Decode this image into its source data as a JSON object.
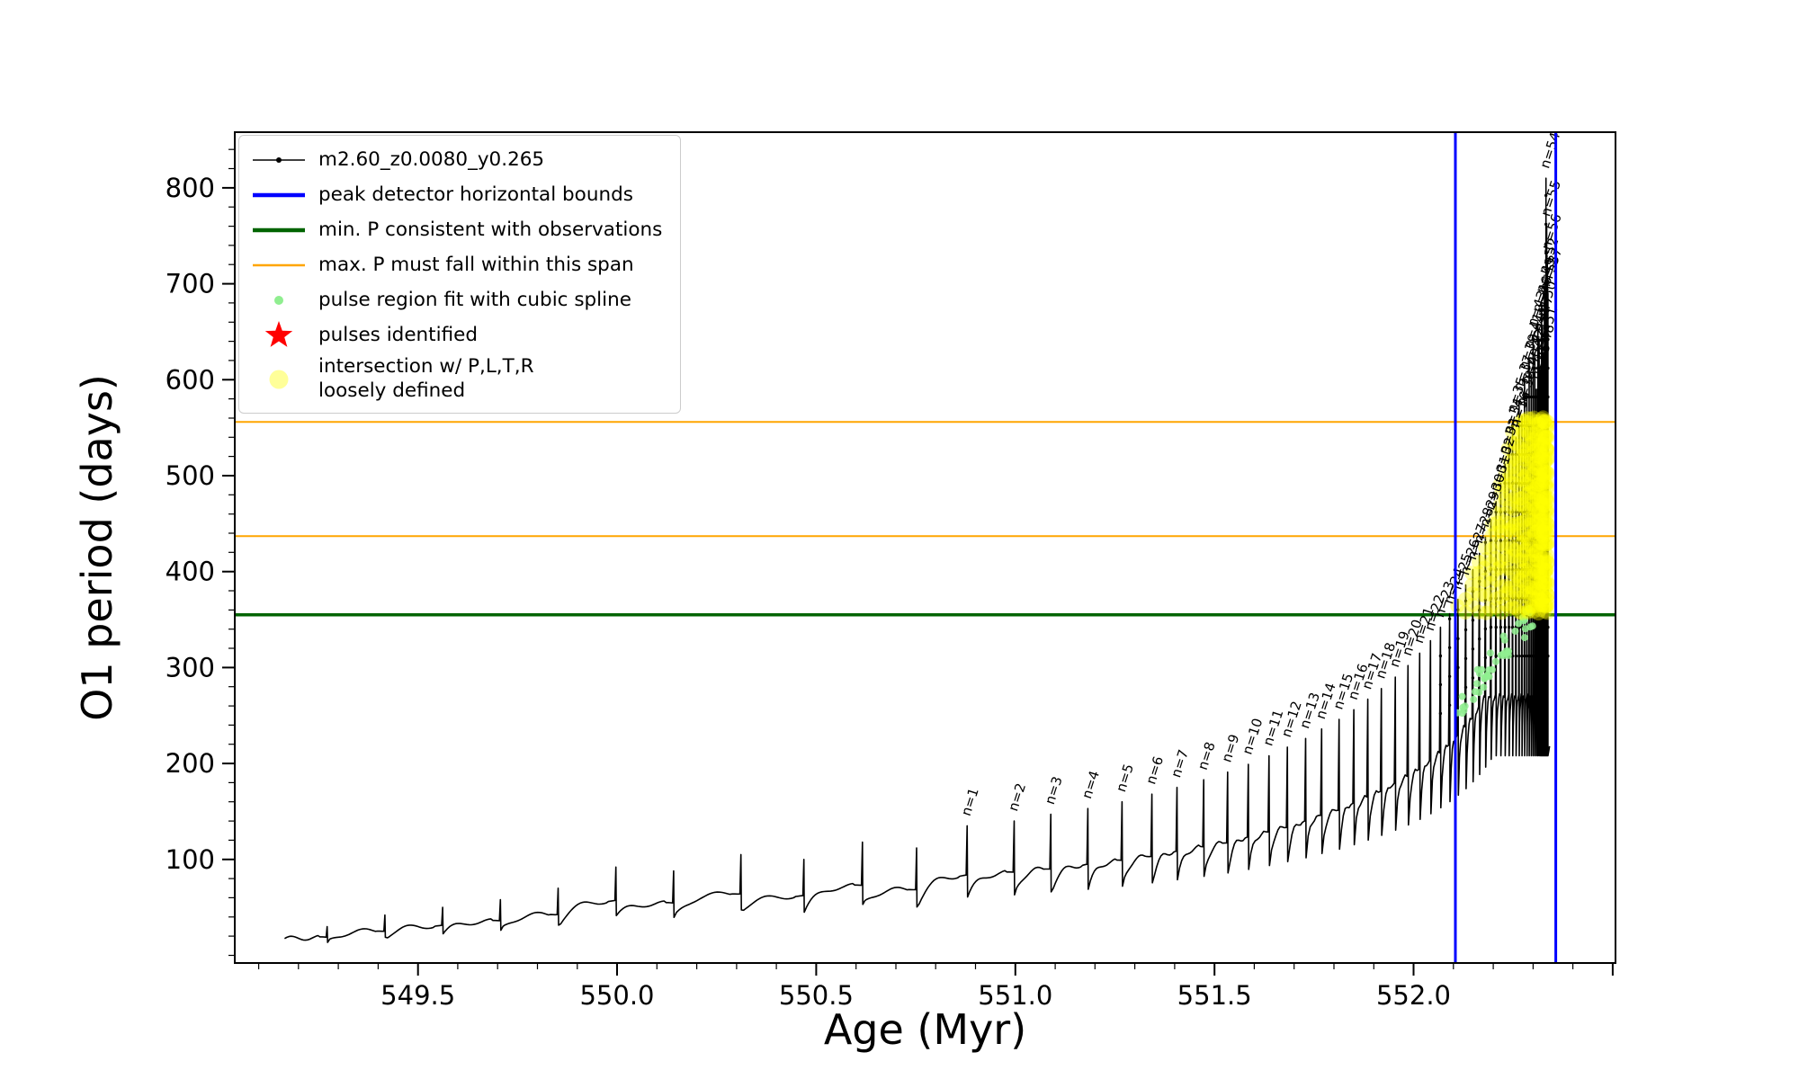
{
  "axes": {
    "xlabel": "Age (Myr)",
    "ylabel": "O1 period (days)",
    "xlim": [
      549.04,
      552.507
    ],
    "ylim": [
      -8,
      858
    ],
    "xticks": [
      549.5,
      550.0,
      550.5,
      551.0,
      551.5,
      552.0
    ],
    "xtick_labels": [
      "549.5",
      "550.0",
      "550.5",
      "551.0",
      "551.5",
      "552.0"
    ],
    "yticks": [
      100,
      200,
      300,
      400,
      500,
      600,
      700,
      800
    ],
    "ytick_labels": [
      "100",
      "200",
      "300",
      "400",
      "500",
      "600",
      "700",
      "800"
    ],
    "x_minor_step": 0.1,
    "y_minor_step": 20
  },
  "legend": {
    "entries": [
      {
        "label": "m2.60_z0.0080_y0.265",
        "marker": "line-dot",
        "color": "#000000"
      },
      {
        "label": "peak detector horizontal bounds",
        "marker": "line-thick",
        "color": "#0000ff"
      },
      {
        "label": "min. P consistent with observations",
        "marker": "line-thick",
        "color": "#006400"
      },
      {
        "label": "max. P must fall within this span",
        "marker": "line",
        "color": "#ffa500"
      },
      {
        "label": "pulse region fit with cubic spline",
        "marker": "dot-small",
        "color": "#90ee90"
      },
      {
        "label": "pulses identified",
        "marker": "star",
        "color": "#ff0000"
      },
      {
        "label": "intersection w/ P,L,T,R\nloosely defined",
        "marker": "dot-large",
        "color": "#ffff99"
      }
    ]
  },
  "chart_data": {
    "type": "line",
    "title": "",
    "xlabel": "Age (Myr)",
    "ylabel": "O1 period (days)",
    "series_label": "m2.60_z0.0080_y0.265",
    "series_color": "#000000",
    "series_start": {
      "t": 549.16,
      "period": 16
    },
    "pulse_label_prefix": "n=",
    "pulses_format": "[n_label (0 = unlabeled), age_myr, peak_period_days]",
    "pulses": [
      [
        0,
        549.272,
        30
      ],
      [
        0,
        549.417,
        42
      ],
      [
        0,
        549.562,
        50
      ],
      [
        0,
        549.707,
        58
      ],
      [
        0,
        549.852,
        70
      ],
      [
        0,
        549.997,
        92
      ],
      [
        0,
        550.142,
        88
      ],
      [
        0,
        550.311,
        105
      ],
      [
        0,
        550.469,
        100
      ],
      [
        0,
        550.616,
        118
      ],
      [
        0,
        550.752,
        112
      ],
      [
        1,
        550.879,
        135
      ],
      [
        2,
        550.997,
        140
      ],
      [
        3,
        551.089,
        147
      ],
      [
        4,
        551.182,
        153
      ],
      [
        5,
        551.268,
        160
      ],
      [
        6,
        551.343,
        168
      ],
      [
        7,
        551.406,
        175
      ],
      [
        8,
        551.473,
        183
      ],
      [
        9,
        551.533,
        191
      ],
      [
        10,
        551.585,
        199
      ],
      [
        11,
        551.637,
        208
      ],
      [
        12,
        551.683,
        217
      ],
      [
        13,
        551.729,
        226
      ],
      [
        14,
        551.769,
        236
      ],
      [
        15,
        551.813,
        246
      ],
      [
        16,
        551.85,
        256
      ],
      [
        17,
        551.885,
        267
      ],
      [
        18,
        551.919,
        278
      ],
      [
        19,
        551.954,
        290
      ],
      [
        20,
        551.986,
        302
      ],
      [
        21,
        552.0154,
        315
      ],
      [
        22,
        552.0425,
        328
      ],
      [
        23,
        552.0674,
        342
      ],
      [
        24,
        552.0904,
        356
      ],
      [
        25,
        552.1115,
        371
      ],
      [
        26,
        552.1309,
        386
      ],
      [
        27,
        552.1487,
        402
      ],
      [
        28,
        552.1652,
        419
      ],
      [
        29,
        552.1803,
        436
      ],
      [
        30,
        552.1942,
        454
      ],
      [
        31,
        552.207,
        473
      ],
      [
        32,
        552.2187,
        492
      ],
      [
        33,
        552.2296,
        512
      ],
      [
        34,
        552.2395,
        533
      ],
      [
        35,
        552.2487,
        555
      ],
      [
        36,
        552.2571,
        540
      ],
      [
        37,
        552.2649,
        578
      ],
      [
        38,
        552.272,
        562
      ],
      [
        39,
        552.2786,
        600
      ],
      [
        40,
        552.2846,
        585
      ],
      [
        41,
        552.2902,
        622
      ],
      [
        42,
        552.2953,
        605
      ],
      [
        43,
        552.3,
        645
      ],
      [
        44,
        552.3043,
        628
      ],
      [
        45,
        552.3083,
        590
      ],
      [
        46,
        552.312,
        660
      ],
      [
        47,
        552.3153,
        640
      ],
      [
        48,
        552.3184,
        610
      ],
      [
        49,
        552.3213,
        680
      ],
      [
        50,
        552.3239,
        655
      ],
      [
        51,
        552.3263,
        628
      ],
      [
        52,
        552.3285,
        700
      ],
      [
        53,
        552.3306,
        682
      ],
      [
        54,
        552.3325,
        810
      ],
      [
        55,
        552.3342,
        760
      ],
      [
        56,
        552.3358,
        725
      ],
      [
        57,
        552.3373,
        690
      ]
    ],
    "vlines": {
      "label": "peak detector horizontal bounds",
      "color": "#0000ff",
      "x": [
        552.105,
        552.357
      ]
    },
    "hlines": [
      {
        "name": "min-period-line",
        "label": "min. P consistent with observations",
        "color": "#006400",
        "width": 3.5,
        "y": [
          355
        ]
      },
      {
        "name": "max-period-span-line",
        "label": "max. P must fall within this span",
        "color": "#ffa500",
        "width": 2,
        "y": [
          437,
          556
        ]
      }
    ],
    "intersection_region": {
      "label": "intersection w/ P,L,T,R loosely defined",
      "color": "#ffff00",
      "x_range": [
        552.1,
        552.345
      ],
      "y_range": [
        355,
        556
      ]
    },
    "spline_fit_region": {
      "label": "pulse region fit with cubic spline",
      "color": "#90ee90",
      "x_range": [
        552.1,
        552.3
      ],
      "y_range": [
        255,
        355
      ]
    }
  }
}
